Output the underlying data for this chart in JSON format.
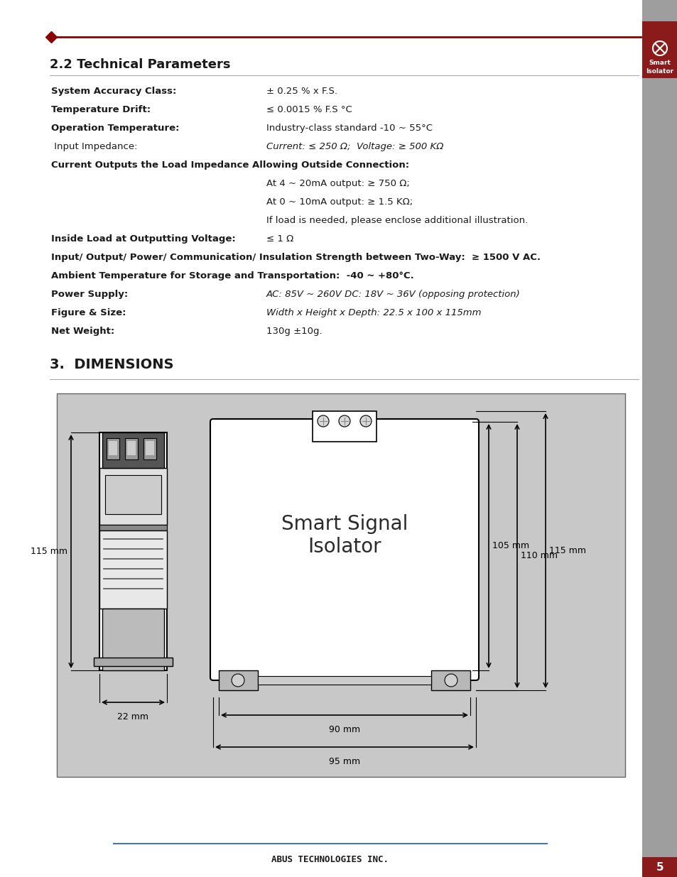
{
  "title_header": "2.2 Technical Parameters",
  "section3_header": "3.  DIMENSIONS",
  "header_line_color": "#8B0000",
  "footer_line_color": "#4472C4",
  "sidebar_color": "#9E9E9E",
  "sidebar_label_color": "#8B1A1A",
  "page_number": "5",
  "page_number_bg": "#8B1A1A",
  "footer_text": "ABUS TECHNOLOGIES INC.",
  "bg_color": "#FFFFFF",
  "tech_params": [
    {
      "label": "System Accuracy Class:",
      "value": "± 0.25 % x F.S.",
      "bold_label": true,
      "italic_value": false,
      "indent": false,
      "full_width": false
    },
    {
      "label": "Temperature Drift:",
      "value": "≤ 0.0015 % F.S °C",
      "bold_label": true,
      "italic_value": false,
      "indent": false,
      "full_width": false
    },
    {
      "label": "Operation Temperature:",
      "value": "Industry-class standard -10 ~ 55°C",
      "bold_label": true,
      "italic_value": false,
      "indent": false,
      "full_width": false
    },
    {
      "label": " Input Impedance:",
      "value": "Current: ≤ 250 Ω;  Voltage: ≥ 500 KΩ",
      "bold_label": false,
      "italic_value": true,
      "indent": false,
      "full_width": false
    },
    {
      "label": "Current Outputs the Load Impedance Allowing Outside Connection:",
      "value": "",
      "bold_label": true,
      "italic_value": false,
      "indent": false,
      "full_width": true
    },
    {
      "label": "",
      "value": "At 4 ~ 20mA output: ≥ 750 Ω;",
      "bold_label": false,
      "italic_value": false,
      "indent": true,
      "full_width": false
    },
    {
      "label": "",
      "value": "At 0 ~ 10mA output: ≥ 1.5 KΩ;",
      "bold_label": false,
      "italic_value": false,
      "indent": true,
      "full_width": false
    },
    {
      "label": "",
      "value": "If load is needed, please enclose additional illustration.",
      "bold_label": false,
      "italic_value": false,
      "indent": true,
      "full_width": false
    },
    {
      "label": "Inside Load at Outputting Voltage:",
      "value": "≤ 1 Ω",
      "bold_label": true,
      "italic_value": false,
      "indent": false,
      "full_width": false
    },
    {
      "label": "Input/ Output/ Power/ Communication/ Insulation Strength between Two-Way:  ≥ 1500 V AC.",
      "value": "",
      "bold_label": true,
      "italic_value": false,
      "indent": false,
      "full_width": true
    },
    {
      "label": "Ambient Temperature for Storage and Transportation:  -40 ~ +80°C.",
      "value": "",
      "bold_label": true,
      "italic_value": false,
      "indent": false,
      "full_width": true
    },
    {
      "label": "Power Supply:",
      "value": "AC: 85V ~ 260V DC: 18V ~ 36V (opposing protection)",
      "bold_label": true,
      "italic_value": true,
      "indent": false,
      "full_width": false
    },
    {
      "label": "Figure & Size:",
      "value": "Width x Height x Depth: 22.5 x 100 x 115mm",
      "bold_label": true,
      "italic_value": true,
      "indent": false,
      "full_width": false
    },
    {
      "label": "Net Weight:",
      "value": "130g ±10g.",
      "bold_label": true,
      "italic_value": false,
      "indent": false,
      "full_width": false
    }
  ],
  "dim_diagram": {
    "bg_color": "#C8C8C8",
    "device_text_line1": "Smart Signal",
    "device_text_line2": "Isolator"
  }
}
